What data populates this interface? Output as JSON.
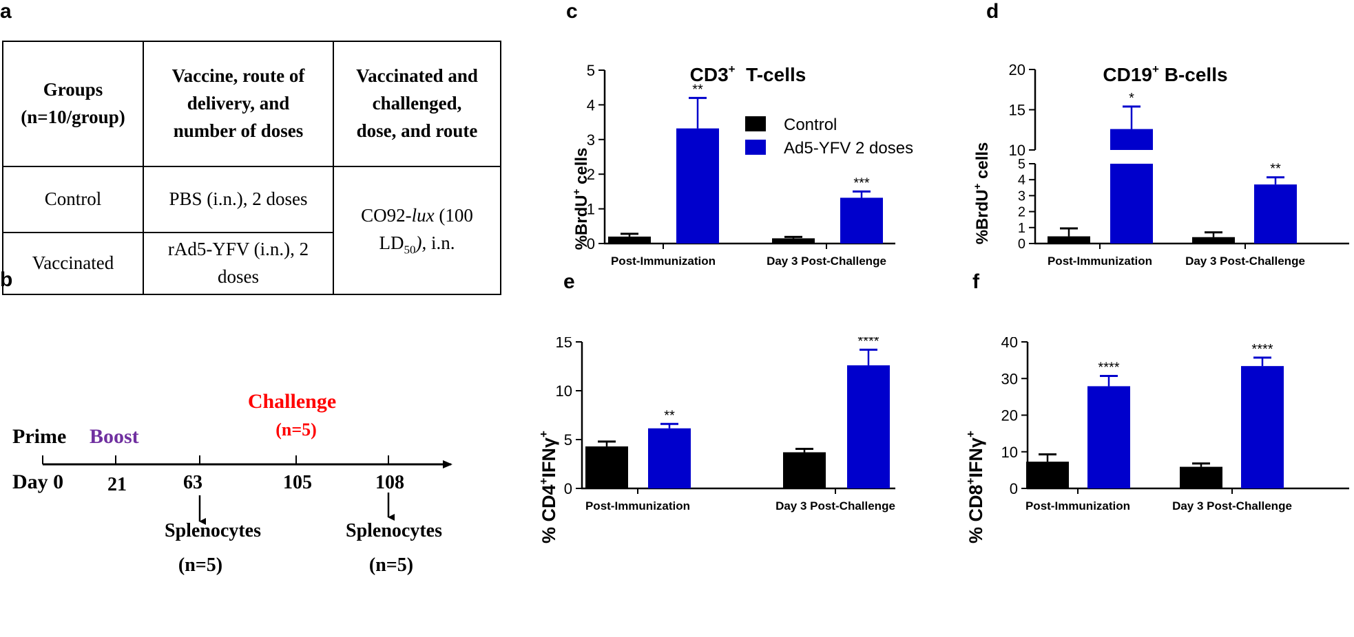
{
  "panels": {
    "a": "a",
    "b": "b",
    "c": "c",
    "d": "d",
    "e": "e",
    "f": "f"
  },
  "table": {
    "headers": [
      [
        "Groups",
        "(n=10/group)"
      ],
      [
        "Vaccine, route of",
        "delivery, and",
        "number of doses"
      ],
      [
        "Vaccinated and",
        "challenged,",
        "dose, and route"
      ]
    ],
    "rows": [
      {
        "group": "Control",
        "vaccine": "PBS (i.n.), 2 doses"
      },
      {
        "group": "Vaccinated",
        "vaccine_line1": "rAd5-YFV (i.n.), 2",
        "vaccine_line2": "doses"
      }
    ],
    "challenge": {
      "prefix": "CO92-",
      "italic": "lux",
      "mid": " (100",
      "ld": "LD",
      "sub": "50",
      "italic2": "),",
      "suffix": " i.n."
    }
  },
  "timeline": {
    "prime": "Prime",
    "boost": "Boost",
    "challenge": "Challenge",
    "challenge_n": "(n=5)",
    "days": [
      "Day 0",
      "21",
      "63",
      "105",
      "108"
    ],
    "splenocytes": "Splenocytes",
    "splenocytes_n": "(n=5)",
    "colors": {
      "boost": "#7030a0",
      "challenge": "#ff0000"
    }
  },
  "legend": {
    "control": "Control",
    "vaccine": "Ad5-YFV 2 doses"
  },
  "colors": {
    "control": "#000000",
    "vaccine": "#0000cc"
  },
  "chart_data": [
    {
      "id": "c",
      "type": "bar",
      "title": "CD3",
      "title_sup": "+",
      "title_rest": "  T-cells",
      "ylabel": "%BrdU",
      "ylabel_sup": "+",
      "ylabel_rest": " cells",
      "categories": [
        "Post-Immunization",
        "Day 3 Post-Challenge"
      ],
      "ylim": [
        0,
        5
      ],
      "yticks": [
        "0",
        "1",
        "2",
        "3",
        "4",
        "5"
      ],
      "series": [
        {
          "name": "Control",
          "values": [
            0.2,
            0.15
          ],
          "errors": [
            0.08,
            0.04
          ]
        },
        {
          "name": "Ad5-YFV 2 doses",
          "values": [
            3.32,
            1.32
          ],
          "errors": [
            0.88,
            0.18
          ]
        }
      ],
      "significance": [
        "**",
        "***"
      ]
    },
    {
      "id": "d",
      "type": "bar",
      "title": "CD19",
      "title_sup": "+",
      "title_rest": " B-cells",
      "ylabel": "%BrdU",
      "ylabel_sup": "+",
      "ylabel_rest": " cells",
      "categories": [
        "Post-Immunization",
        "Day 3 Post-Challenge"
      ],
      "broken_axis": {
        "lower": [
          0,
          5
        ],
        "upper": [
          10,
          20
        ]
      },
      "yticks_lower": [
        "0",
        "1",
        "2",
        "3",
        "4",
        "5"
      ],
      "yticks_upper": [
        "10",
        "15",
        "20"
      ],
      "series": [
        {
          "name": "Control",
          "values": [
            0.45,
            0.4
          ],
          "errors": [
            0.5,
            0.3
          ]
        },
        {
          "name": "Ad5-YFV 2 doses",
          "values": [
            12.6,
            3.7
          ],
          "errors": [
            2.8,
            0.45
          ]
        }
      ],
      "significance": [
        "*",
        "**"
      ]
    },
    {
      "id": "e",
      "type": "bar",
      "ylabel": "% CD4",
      "ylabel_sup": "+",
      "ylabel_mid": "IFNγ",
      "ylabel_sup2": "+",
      "categories": [
        "Post-Immunization",
        "Day 3 Post-Challenge"
      ],
      "ylim": [
        0,
        15
      ],
      "yticks": [
        "0",
        "5",
        "10",
        "15"
      ],
      "series": [
        {
          "name": "Control",
          "values": [
            4.3,
            3.7
          ],
          "errors": [
            0.5,
            0.35
          ]
        },
        {
          "name": "Ad5-YFV 2 doses",
          "values": [
            6.15,
            12.6
          ],
          "errors": [
            0.45,
            1.6
          ]
        }
      ],
      "significance": [
        "**",
        "****"
      ]
    },
    {
      "id": "f",
      "type": "bar",
      "ylabel": "% CD8",
      "ylabel_sup": "+",
      "ylabel_mid": "IFNγ",
      "ylabel_sup2": "+",
      "categories": [
        "Post-Immunization",
        "Day 3 Post-Challenge"
      ],
      "ylim": [
        0,
        40
      ],
      "yticks": [
        "0",
        "10",
        "20",
        "30",
        "40"
      ],
      "series": [
        {
          "name": "Control",
          "values": [
            7.3,
            5.9
          ],
          "errors": [
            2.0,
            0.9
          ]
        },
        {
          "name": "Ad5-YFV 2 doses",
          "values": [
            27.9,
            33.4
          ],
          "errors": [
            2.8,
            2.3
          ]
        }
      ],
      "significance": [
        "****",
        "****"
      ]
    }
  ]
}
